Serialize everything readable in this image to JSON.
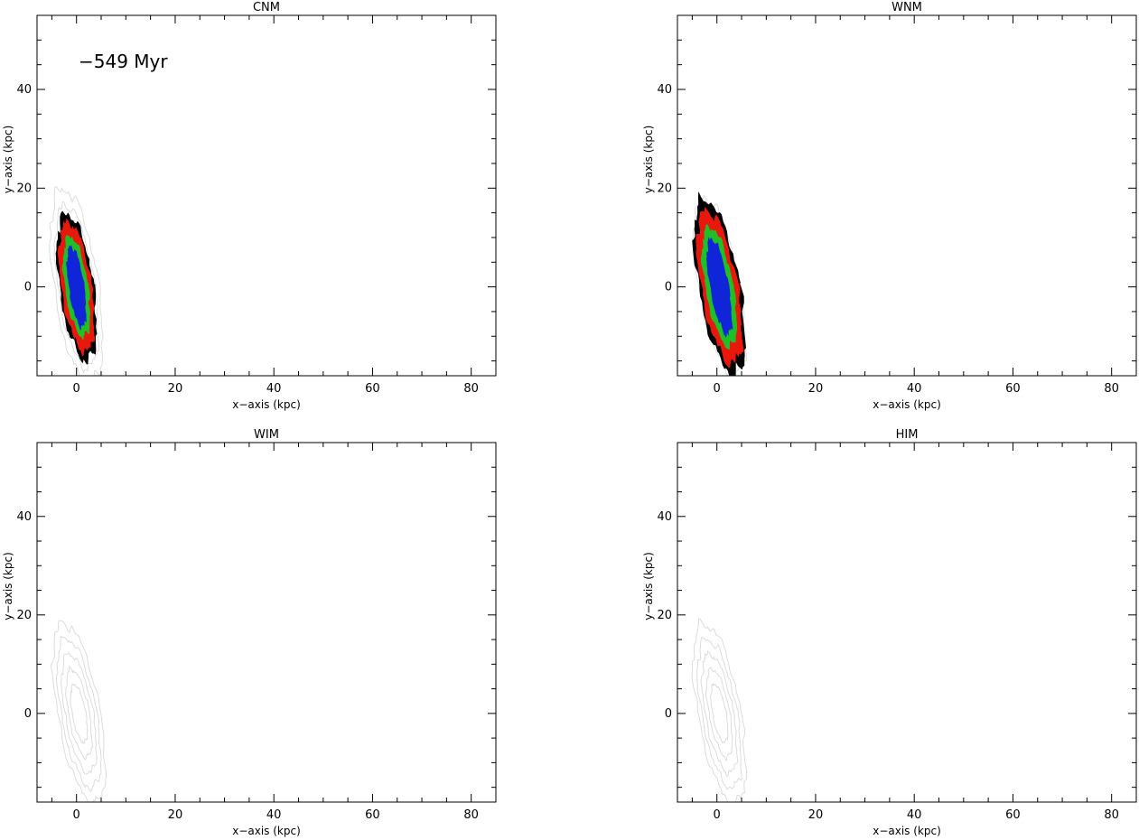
{
  "chart_data": [
    {
      "type": "contour",
      "title": "CNM",
      "xlabel": "x−axis (kpc)",
      "ylabel": "y−axis (kpc)",
      "xlim": [
        -8,
        85
      ],
      "ylim": [
        -18,
        55
      ],
      "xticks": [
        0,
        20,
        40,
        60,
        80
      ],
      "yticks": [
        0,
        20,
        40
      ],
      "annotation": "−549 Myr",
      "blob": {
        "center": [
          0,
          0
        ],
        "semi_major": 15,
        "semi_minor": 3.5,
        "tilt_deg": 8
      },
      "faint_extent": {
        "semi_major": 20,
        "semi_minor": 4.5
      },
      "levels": [
        "#000000",
        "#e8190c",
        "#1fbf27",
        "#1025d8"
      ],
      "outer_contour_color": "#d9d9d9"
    },
    {
      "type": "contour",
      "title": "WNM",
      "xlabel": "x−axis (kpc)",
      "ylabel": "y−axis (kpc)",
      "xlim": [
        -8,
        85
      ],
      "ylim": [
        -18,
        55
      ],
      "xticks": [
        0,
        20,
        40,
        60,
        80
      ],
      "yticks": [
        0,
        20,
        40
      ],
      "blob": {
        "center": [
          0.5,
          0
        ],
        "semi_major": 18,
        "semi_minor": 4.2,
        "tilt_deg": 10
      },
      "faint_extent": {
        "semi_major": 18,
        "semi_minor": 4.2
      },
      "levels": [
        "#000000",
        "#e8190c",
        "#1fbf27",
        "#1025d8"
      ],
      "outer_contour_color": "#d9d9d9"
    },
    {
      "type": "contour",
      "title": "WIM",
      "xlabel": "x−axis (kpc)",
      "ylabel": "y−axis (kpc)",
      "xlim": [
        -8,
        85
      ],
      "ylim": [
        -18,
        55
      ],
      "xticks": [
        0,
        20,
        40,
        60,
        80
      ],
      "yticks": [
        0,
        20,
        40
      ],
      "blob": {
        "center": [
          0.5,
          0
        ],
        "semi_major": 18.5,
        "semi_minor": 4.3,
        "tilt_deg": 10
      },
      "faint_extent": {
        "semi_major": 18.5,
        "semi_minor": 4.3
      },
      "levels": [],
      "outer_contour_color": "#d9d9d9"
    },
    {
      "type": "contour",
      "title": "HIM",
      "xlabel": "x−axis (kpc)",
      "ylabel": "y−axis (kpc)",
      "xlim": [
        -8,
        85
      ],
      "ylim": [
        -18,
        55
      ],
      "xticks": [
        0,
        20,
        40,
        60,
        80
      ],
      "yticks": [
        0,
        20,
        40
      ],
      "blob": {
        "center": [
          0.5,
          0
        ],
        "semi_major": 18.5,
        "semi_minor": 4.3,
        "tilt_deg": 10
      },
      "faint_extent": {
        "semi_major": 18.5,
        "semi_minor": 4.3
      },
      "levels": [],
      "outer_contour_color": "#d9d9d9"
    }
  ]
}
